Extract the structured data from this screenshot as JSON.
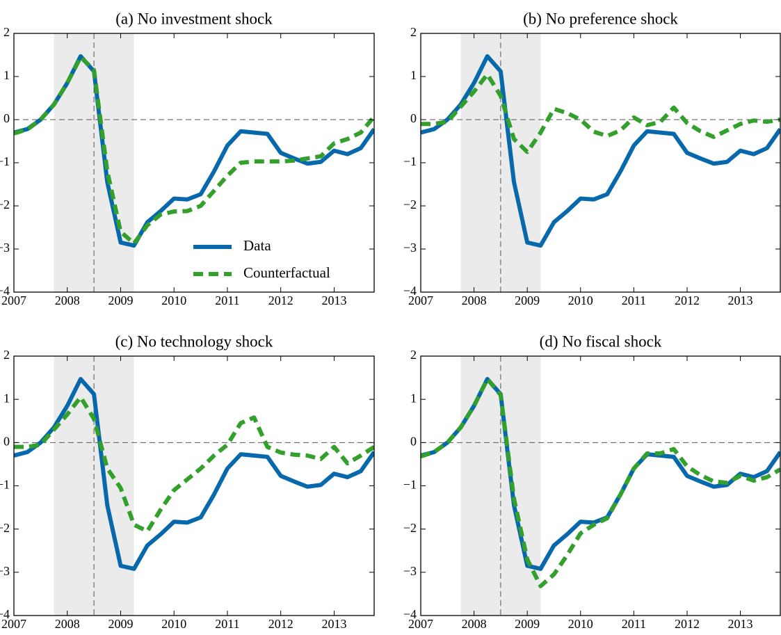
{
  "chart_data": [
    {
      "type": "line",
      "title": "(a) No investment shock",
      "x": [
        2007,
        2007.25,
        2007.5,
        2007.75,
        2008,
        2008.25,
        2008.5,
        2008.75,
        2009,
        2009.25,
        2009.5,
        2009.75,
        2010,
        2010.25,
        2010.5,
        2010.75,
        2011,
        2011.25,
        2011.5,
        2011.75,
        2012,
        2012.25,
        2012.5,
        2012.75,
        2013,
        2013.25,
        2013.5,
        2013.75
      ],
      "series": [
        {
          "name": "Data",
          "color": "#0868ac",
          "style": "solid",
          "values": [
            -0.3,
            -0.22,
            0.0,
            0.35,
            0.85,
            1.47,
            1.12,
            -1.45,
            -2.85,
            -2.92,
            -2.38,
            -2.12,
            -1.83,
            -1.85,
            -1.73,
            -1.2,
            -0.6,
            -0.27,
            -0.3,
            -0.33,
            -0.77,
            -0.9,
            -1.02,
            -0.98,
            -0.72,
            -0.8,
            -0.66,
            -0.22
          ]
        },
        {
          "name": "Counterfactual",
          "color": "#33a02c",
          "style": "dashed",
          "values": [
            -0.32,
            -0.23,
            0.0,
            0.35,
            0.85,
            1.45,
            1.15,
            -1.2,
            -2.6,
            -2.87,
            -2.45,
            -2.2,
            -2.13,
            -2.12,
            -2.0,
            -1.65,
            -1.3,
            -1.0,
            -0.97,
            -0.97,
            -0.97,
            -0.95,
            -0.9,
            -0.85,
            -0.55,
            -0.45,
            -0.3,
            0.07
          ]
        }
      ],
      "xlim": [
        2007,
        2013.75
      ],
      "xticks": [
        2007,
        2008,
        2009,
        2010,
        2011,
        2012,
        2013
      ],
      "ylim": [
        -4,
        2
      ],
      "yticks": [
        {
          "value": -4,
          "label": "−4"
        },
        {
          "value": -3,
          "label": "−3"
        },
        {
          "value": -2,
          "label": "−2"
        },
        {
          "value": -1,
          "label": "−1"
        },
        0,
        1,
        2
      ],
      "shade": [
        2007.75,
        2009.25
      ],
      "vline": 2008.5,
      "hline": 0,
      "legend": "lower right"
    },
    {
      "type": "line",
      "title": "(b) No preference shock",
      "x": [
        2007,
        2007.25,
        2007.5,
        2007.75,
        2008,
        2008.25,
        2008.5,
        2008.75,
        2009,
        2009.25,
        2009.5,
        2009.75,
        2010,
        2010.25,
        2010.5,
        2010.75,
        2011,
        2011.25,
        2011.5,
        2011.75,
        2012,
        2012.25,
        2012.5,
        2012.75,
        2013,
        2013.25,
        2013.5,
        2013.75
      ],
      "series": [
        {
          "color": "#0868ac",
          "style": "solid",
          "values": [
            -0.3,
            -0.22,
            0.0,
            0.35,
            0.85,
            1.47,
            1.12,
            -1.45,
            -2.85,
            -2.92,
            -2.38,
            -2.12,
            -1.83,
            -1.85,
            -1.73,
            -1.2,
            -0.6,
            -0.27,
            -0.3,
            -0.33,
            -0.77,
            -0.9,
            -1.02,
            -0.98,
            -0.72,
            -0.8,
            -0.66,
            -0.22
          ]
        },
        {
          "color": "#33a02c",
          "style": "dashed",
          "values": [
            -0.1,
            -0.1,
            -0.05,
            0.3,
            0.65,
            1.05,
            0.55,
            -0.45,
            -0.75,
            -0.3,
            0.25,
            0.15,
            0.0,
            -0.28,
            -0.38,
            -0.25,
            0.05,
            -0.13,
            -0.05,
            0.28,
            -0.08,
            -0.27,
            -0.4,
            -0.25,
            -0.1,
            -0.02,
            -0.05,
            0.0
          ]
        }
      ],
      "xlim": [
        2007,
        2013.75
      ],
      "xticks": [
        2007,
        2008,
        2009,
        2010,
        2011,
        2012,
        2013
      ],
      "ylim": [
        -4,
        2
      ],
      "yticks": [
        {
          "value": -4,
          "label": "−4"
        },
        {
          "value": -3,
          "label": "−3"
        },
        {
          "value": -2,
          "label": "−2"
        },
        {
          "value": -1,
          "label": "−1"
        },
        0,
        1,
        2
      ],
      "shade": [
        2007.75,
        2009.25
      ],
      "vline": 2008.5,
      "hline": 0
    },
    {
      "type": "line",
      "title": "(c) No technology shock",
      "x": [
        2007,
        2007.25,
        2007.5,
        2007.75,
        2008,
        2008.25,
        2008.5,
        2008.75,
        2009,
        2009.25,
        2009.5,
        2009.75,
        2010,
        2010.25,
        2010.5,
        2010.75,
        2011,
        2011.25,
        2011.5,
        2011.75,
        2012,
        2012.25,
        2012.5,
        2012.75,
        2013,
        2013.25,
        2013.5,
        2013.75
      ],
      "series": [
        {
          "color": "#0868ac",
          "style": "solid",
          "values": [
            -0.3,
            -0.22,
            0.0,
            0.35,
            0.85,
            1.47,
            1.12,
            -1.45,
            -2.85,
            -2.92,
            -2.38,
            -2.12,
            -1.83,
            -1.85,
            -1.73,
            -1.2,
            -0.6,
            -0.27,
            -0.3,
            -0.33,
            -0.77,
            -0.9,
            -1.02,
            -0.98,
            -0.72,
            -0.8,
            -0.66,
            -0.22
          ]
        },
        {
          "color": "#33a02c",
          "style": "dashed",
          "values": [
            -0.1,
            -0.1,
            -0.05,
            0.3,
            0.65,
            1.05,
            0.55,
            -0.6,
            -1.05,
            -1.9,
            -2.05,
            -1.55,
            -1.1,
            -0.85,
            -0.6,
            -0.3,
            -0.05,
            0.45,
            0.58,
            -0.1,
            -0.23,
            -0.28,
            -0.3,
            -0.38,
            -0.1,
            -0.48,
            -0.3,
            -0.1
          ]
        }
      ],
      "xlim": [
        2007,
        2013.75
      ],
      "xticks": [
        2007,
        2008,
        2009,
        2010,
        2011,
        2012,
        2013
      ],
      "ylim": [
        -4,
        2
      ],
      "yticks": [
        {
          "value": -4,
          "label": "−4"
        },
        {
          "value": -3,
          "label": "−3"
        },
        {
          "value": -2,
          "label": "−2"
        },
        {
          "value": -1,
          "label": "−1"
        },
        0,
        1,
        2
      ],
      "shade": [
        2007.75,
        2009.25
      ],
      "vline": 2008.5,
      "hline": 0
    },
    {
      "type": "line",
      "title": "(d) No fiscal shock",
      "x": [
        2007,
        2007.25,
        2007.5,
        2007.75,
        2008,
        2008.25,
        2008.5,
        2008.75,
        2009,
        2009.25,
        2009.5,
        2009.75,
        2010,
        2010.25,
        2010.5,
        2010.75,
        2011,
        2011.25,
        2011.5,
        2011.75,
        2012,
        2012.25,
        2012.5,
        2012.75,
        2013,
        2013.25,
        2013.5,
        2013.75
      ],
      "series": [
        {
          "color": "#0868ac",
          "style": "solid",
          "values": [
            -0.3,
            -0.22,
            0.0,
            0.35,
            0.85,
            1.47,
            1.12,
            -1.45,
            -2.85,
            -2.92,
            -2.38,
            -2.12,
            -1.83,
            -1.85,
            -1.73,
            -1.2,
            -0.6,
            -0.27,
            -0.3,
            -0.33,
            -0.77,
            -0.9,
            -1.02,
            -0.98,
            -0.72,
            -0.8,
            -0.66,
            -0.22
          ]
        },
        {
          "color": "#33a02c",
          "style": "dashed",
          "values": [
            -0.32,
            -0.22,
            0.0,
            0.35,
            0.85,
            1.47,
            1.1,
            -1.3,
            -2.7,
            -3.32,
            -3.05,
            -2.6,
            -2.1,
            -1.9,
            -1.75,
            -1.2,
            -0.6,
            -0.25,
            -0.25,
            -0.15,
            -0.55,
            -0.75,
            -0.9,
            -0.93,
            -0.77,
            -0.88,
            -0.8,
            -0.62
          ]
        }
      ],
      "xlim": [
        2007,
        2013.75
      ],
      "xticks": [
        2007,
        2008,
        2009,
        2010,
        2011,
        2012,
        2013
      ],
      "ylim": [
        -4,
        2
      ],
      "yticks": [
        {
          "value": -4,
          "label": "−4"
        },
        {
          "value": -3,
          "label": "−3"
        },
        {
          "value": -2,
          "label": "−2"
        },
        {
          "value": -1,
          "label": "−1"
        },
        0,
        1,
        2
      ],
      "shade": [
        2007.75,
        2009.25
      ],
      "vline": 2008.5,
      "hline": 0
    }
  ]
}
